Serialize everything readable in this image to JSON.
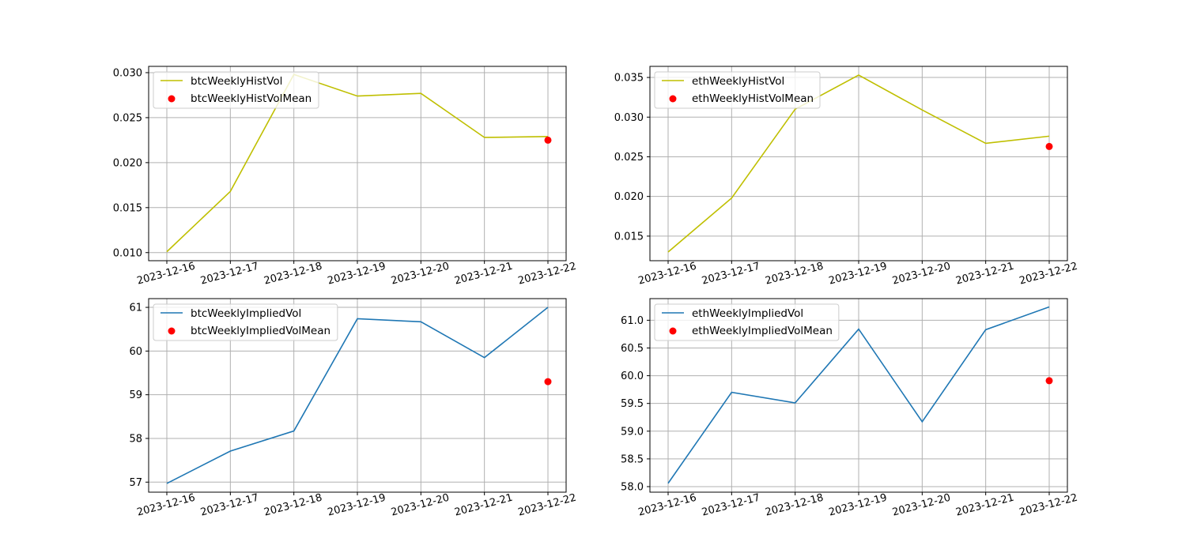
{
  "chart_data": [
    {
      "id": "btc-hist",
      "type": "line",
      "x": [
        "2023-12-16",
        "2023-12-17",
        "2023-12-18",
        "2023-12-19",
        "2023-12-20",
        "2023-12-21",
        "2023-12-22"
      ],
      "series": [
        {
          "name": "btcWeeklyHistVol",
          "kind": "line",
          "color": "#bfbf00",
          "values": [
            0.0101,
            0.0168,
            0.0298,
            0.0274,
            0.0277,
            0.0228,
            0.0229
          ]
        }
      ],
      "mean": {
        "name": "btcWeeklyHistVolMean",
        "kind": "scatter",
        "color": "#ff0000",
        "x": "2023-12-22",
        "value": 0.0225
      },
      "ylim": [
        0.0091,
        0.0307
      ],
      "yticks": [
        0.01,
        0.015,
        0.02,
        0.025,
        0.03
      ],
      "ytick_labels": [
        "0.010",
        "0.015",
        "0.020",
        "0.025",
        "0.030"
      ],
      "grid": true,
      "legend_position": "upper-left"
    },
    {
      "id": "eth-hist",
      "type": "line",
      "x": [
        "2023-12-16",
        "2023-12-17",
        "2023-12-18",
        "2023-12-19",
        "2023-12-20",
        "2023-12-21",
        "2023-12-22"
      ],
      "series": [
        {
          "name": "ethWeeklyHistVol",
          "kind": "line",
          "color": "#bfbf00",
          "values": [
            0.013,
            0.0198,
            0.031,
            0.0353,
            0.0309,
            0.0267,
            0.0276
          ]
        }
      ],
      "mean": {
        "name": "ethWeeklyHistVolMean",
        "kind": "scatter",
        "color": "#ff0000",
        "x": "2023-12-22",
        "value": 0.0263
      },
      "ylim": [
        0.0119,
        0.0364
      ],
      "yticks": [
        0.015,
        0.02,
        0.025,
        0.03,
        0.035
      ],
      "ytick_labels": [
        "0.015",
        "0.020",
        "0.025",
        "0.030",
        "0.035"
      ],
      "grid": true,
      "legend_position": "upper-left"
    },
    {
      "id": "btc-implied",
      "type": "line",
      "x": [
        "2023-12-16",
        "2023-12-17",
        "2023-12-18",
        "2023-12-19",
        "2023-12-20",
        "2023-12-21",
        "2023-12-22"
      ],
      "series": [
        {
          "name": "btcWeeklyImpliedVol",
          "kind": "line",
          "color": "#1f77b4",
          "values": [
            56.97,
            57.71,
            58.17,
            60.74,
            60.67,
            59.85,
            61.0
          ]
        }
      ],
      "mean": {
        "name": "btcWeeklyImpliedVolMean",
        "kind": "scatter",
        "color": "#ff0000",
        "x": "2023-12-22",
        "value": 59.3
      },
      "ylim": [
        56.77,
        61.2
      ],
      "yticks": [
        57,
        58,
        59,
        60,
        61
      ],
      "ytick_labels": [
        "57",
        "58",
        "59",
        "60",
        "61"
      ],
      "grid": true,
      "legend_position": "upper-left"
    },
    {
      "id": "eth-implied",
      "type": "line",
      "x": [
        "2023-12-16",
        "2023-12-17",
        "2023-12-18",
        "2023-12-19",
        "2023-12-20",
        "2023-12-21",
        "2023-12-22"
      ],
      "series": [
        {
          "name": "ethWeeklyImpliedVol",
          "kind": "line",
          "color": "#1f77b4",
          "values": [
            58.06,
            59.7,
            59.51,
            60.84,
            59.17,
            60.83,
            61.24
          ]
        }
      ],
      "mean": {
        "name": "ethWeeklyImpliedVolMean",
        "kind": "scatter",
        "color": "#ff0000",
        "x": "2023-12-22",
        "value": 59.91
      },
      "ylim": [
        57.9,
        61.39
      ],
      "yticks": [
        58.0,
        58.5,
        59.0,
        59.5,
        60.0,
        60.5,
        61.0
      ],
      "ytick_labels": [
        "58.0",
        "58.5",
        "59.0",
        "59.5",
        "60.0",
        "60.5",
        "61.0"
      ],
      "grid": true,
      "legend_position": "upper-left"
    }
  ]
}
